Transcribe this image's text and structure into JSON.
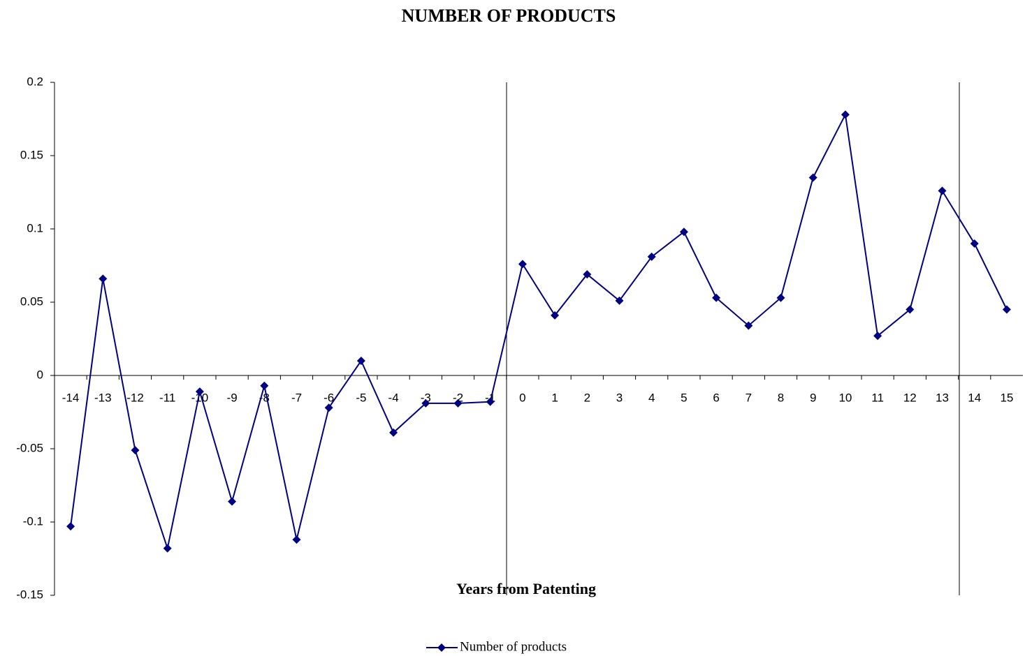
{
  "chart_data": {
    "type": "line",
    "title": "NUMBER OF PRODUCTS",
    "x_label": "Years from Patenting",
    "categories": [
      "-14",
      "-13",
      "-12",
      "-11",
      "-10",
      "-9",
      "-8",
      "-7",
      "-6",
      "-5",
      "-4",
      "-3",
      "-2",
      "-1",
      "0",
      "1",
      "2",
      "3",
      "4",
      "5",
      "6",
      "7",
      "8",
      "9",
      "10",
      "11",
      "12",
      "13",
      "14",
      "15"
    ],
    "series": [
      {
        "name": "Number of products",
        "color": "#000080",
        "values": [
          -0.103,
          0.066,
          -0.051,
          -0.118,
          -0.011,
          -0.086,
          -0.007,
          -0.112,
          -0.022,
          0.01,
          -0.039,
          -0.019,
          -0.019,
          -0.018,
          0.076,
          0.041,
          0.069,
          0.051,
          0.081,
          0.098,
          0.053,
          0.034,
          0.053,
          0.135,
          0.178,
          0.027,
          0.045,
          0.126,
          0.09,
          0.045
        ]
      }
    ],
    "ylim": [
      -0.15,
      0.2
    ],
    "yticks": [
      -0.15,
      -0.1,
      -0.05,
      0,
      0.05,
      0.1,
      0.15,
      0.2
    ],
    "legend": "bottom"
  }
}
